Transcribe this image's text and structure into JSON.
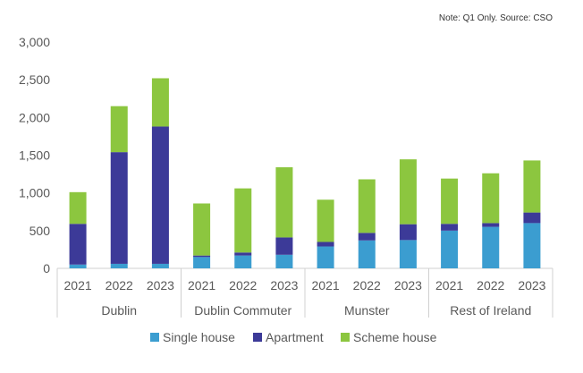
{
  "note": "Note: Q1 Only. Source: CSO",
  "colors": {
    "single_house": "#3b9dd0",
    "apartment": "#3c3a98",
    "scheme_house": "#8cc63f",
    "axis": "#d0d0d0",
    "text": "#595959"
  },
  "chart_data": {
    "type": "bar",
    "stacked": true,
    "groups": [
      "Dublin",
      "Dublin Commuter",
      "Munster",
      "Rest of Ireland"
    ],
    "categories": [
      "2021",
      "2022",
      "2023",
      "2021",
      "2022",
      "2023",
      "2021",
      "2022",
      "2023",
      "2021",
      "2022",
      "2023"
    ],
    "category_group": [
      0,
      0,
      0,
      1,
      1,
      1,
      2,
      2,
      2,
      3,
      3,
      3
    ],
    "series": [
      {
        "name": "Single house",
        "color_key": "single_house",
        "values": [
          50,
          60,
          60,
          150,
          170,
          180,
          290,
          370,
          375,
          500,
          550,
          600
        ]
      },
      {
        "name": "Apartment",
        "color_key": "apartment",
        "values": [
          540,
          1480,
          1820,
          20,
          40,
          230,
          60,
          100,
          210,
          90,
          50,
          140
        ]
      },
      {
        "name": "Scheme house",
        "color_key": "scheme_house",
        "values": [
          420,
          610,
          640,
          690,
          850,
          930,
          560,
          710,
          860,
          600,
          660,
          690
        ]
      }
    ],
    "ylim": [
      0,
      3000
    ],
    "yticks": [
      "0",
      "500",
      "1,000",
      "1,500",
      "2,000",
      "2,500",
      "3,000"
    ],
    "ytick_values": [
      0,
      500,
      1000,
      1500,
      2000,
      2500,
      3000
    ],
    "grid": false,
    "legend_position": "bottom"
  }
}
